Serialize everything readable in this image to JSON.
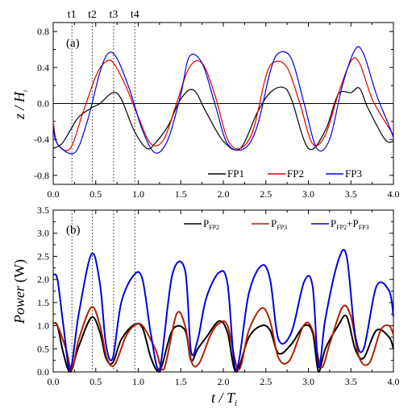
{
  "chart_data": [
    {
      "type": "line",
      "panel_label": "(a)",
      "xlabel": "",
      "ylabel": {
        "base": "z / H",
        "sub": "i"
      },
      "xlim": [
        0.0,
        4.0
      ],
      "ylim": [
        -0.9,
        0.9
      ],
      "xticks": [
        "0.0",
        "0.5",
        "1.0",
        "1.5",
        "2.0",
        "2.5",
        "3.0",
        "3.5",
        "4.0"
      ],
      "yticks": [
        "-0.8",
        "-0.4",
        "0.0",
        "0.4",
        "0.8"
      ],
      "reference_line_y": 0.0,
      "legend_position": "bottom-right",
      "markers": [
        {
          "label": "t1",
          "x": 0.22
        },
        {
          "label": "t2",
          "x": 0.46
        },
        {
          "label": "t3",
          "x": 0.71
        },
        {
          "label": "t4",
          "x": 0.96
        }
      ],
      "series": [
        {
          "name": "FP1",
          "color": "#000000",
          "x": [
            0.0,
            0.1,
            0.2,
            0.3,
            0.45,
            0.55,
            0.7,
            0.8,
            0.95,
            1.1,
            1.2,
            1.35,
            1.5,
            1.65,
            1.8,
            2.0,
            2.2,
            2.4,
            2.55,
            2.7,
            2.8,
            3.0,
            3.2,
            3.35,
            3.5,
            3.6,
            3.7,
            3.9,
            4.0
          ],
          "y": [
            -0.5,
            -0.45,
            -0.3,
            -0.15,
            -0.05,
            0.0,
            0.12,
            0.05,
            -0.3,
            -0.5,
            -0.44,
            -0.25,
            0.05,
            0.15,
            -0.1,
            -0.42,
            -0.5,
            -0.1,
            0.12,
            0.18,
            0.05,
            -0.5,
            -0.3,
            0.1,
            0.12,
            0.17,
            -0.05,
            -0.4,
            -0.42
          ]
        },
        {
          "name": "FP2",
          "color": "#e00000",
          "x": [
            0.0,
            0.05,
            0.2,
            0.35,
            0.5,
            0.6,
            0.7,
            0.85,
            1.0,
            1.15,
            1.3,
            1.45,
            1.6,
            1.75,
            1.9,
            2.05,
            2.2,
            2.35,
            2.5,
            2.6,
            2.75,
            2.9,
            3.05,
            3.2,
            3.35,
            3.5,
            3.6,
            3.75,
            3.9,
            4.0
          ],
          "y": [
            -0.2,
            -0.45,
            -0.5,
            -0.1,
            0.3,
            0.45,
            0.46,
            0.2,
            -0.15,
            -0.45,
            -0.4,
            0.0,
            0.4,
            0.45,
            0.1,
            -0.4,
            -0.5,
            -0.3,
            0.3,
            0.46,
            0.4,
            0.0,
            -0.45,
            -0.35,
            0.1,
            0.47,
            0.45,
            0.05,
            -0.2,
            -0.35
          ]
        },
        {
          "name": "FP3",
          "color": "#0000dd",
          "x": [
            0.0,
            0.05,
            0.25,
            0.4,
            0.55,
            0.65,
            0.75,
            0.9,
            1.05,
            1.2,
            1.35,
            1.5,
            1.6,
            1.75,
            1.9,
            2.05,
            2.25,
            2.4,
            2.55,
            2.65,
            2.8,
            2.95,
            3.1,
            3.25,
            3.4,
            3.55,
            3.65,
            3.8,
            3.95,
            4.0
          ],
          "y": [
            -0.25,
            -0.45,
            -0.55,
            -0.2,
            0.35,
            0.56,
            0.5,
            0.15,
            -0.3,
            -0.55,
            -0.4,
            0.1,
            0.52,
            0.45,
            0.0,
            -0.45,
            -0.5,
            -0.25,
            0.35,
            0.56,
            0.5,
            0.0,
            -0.5,
            -0.4,
            0.2,
            0.6,
            0.55,
            0.1,
            -0.25,
            -0.38
          ]
        }
      ]
    },
    {
      "type": "line",
      "panel_label": "(b)",
      "xlabel": {
        "base": "t / T",
        "sub": "i"
      },
      "ylabel": {
        "base": "Power",
        "unit": "(W)"
      },
      "xlim": [
        0.0,
        4.0
      ],
      "ylim": [
        0.0,
        3.5
      ],
      "xticks": [
        "0.0",
        "0.5",
        "1.0",
        "1.5",
        "2.0",
        "2.5",
        "3.0",
        "3.5",
        "4.0"
      ],
      "yticks": [
        "0.0",
        "0.5",
        "1.0",
        "1.5",
        "2.0",
        "2.5",
        "3.0",
        "3.5"
      ],
      "legend_position": "top-right",
      "series": [
        {
          "name": "P",
          "sub": "FP2",
          "color": "#000000",
          "x": [
            0.0,
            0.05,
            0.12,
            0.2,
            0.3,
            0.45,
            0.55,
            0.62,
            0.7,
            0.8,
            0.95,
            1.05,
            1.15,
            1.25,
            1.4,
            1.55,
            1.62,
            1.7,
            1.8,
            1.95,
            2.05,
            2.15,
            2.3,
            2.45,
            2.55,
            2.65,
            2.8,
            2.95,
            3.05,
            3.12,
            3.2,
            3.35,
            3.45,
            3.55,
            3.65,
            3.8,
            3.95,
            4.0
          ],
          "y": [
            1.05,
            1.0,
            0.4,
            0.0,
            0.55,
            1.18,
            0.85,
            0.3,
            0.2,
            0.7,
            1.02,
            0.95,
            0.3,
            0.0,
            0.9,
            0.9,
            0.25,
            0.5,
            0.75,
            1.1,
            0.85,
            0.0,
            0.75,
            1.0,
            0.9,
            0.4,
            0.6,
            1.0,
            0.85,
            0.0,
            0.5,
            1.0,
            1.2,
            0.5,
            0.3,
            0.9,
            0.75,
            0.5
          ]
        },
        {
          "name": "P",
          "sub": "FP3",
          "color": "#b02000",
          "x": [
            0.0,
            0.05,
            0.15,
            0.22,
            0.3,
            0.45,
            0.55,
            0.63,
            0.72,
            0.85,
            0.95,
            1.05,
            1.2,
            1.3,
            1.45,
            1.55,
            1.63,
            1.72,
            1.85,
            1.95,
            2.05,
            2.18,
            2.3,
            2.45,
            2.55,
            2.65,
            2.78,
            2.95,
            3.05,
            3.15,
            3.25,
            3.4,
            3.5,
            3.6,
            3.72,
            3.85,
            3.95,
            4.0
          ],
          "y": [
            1.05,
            1.0,
            0.5,
            0.05,
            0.7,
            1.4,
            1.0,
            0.3,
            0.15,
            0.75,
            1.0,
            1.0,
            0.5,
            0.05,
            1.25,
            1.0,
            0.2,
            0.2,
            0.8,
            1.05,
            1.0,
            0.05,
            0.9,
            1.38,
            1.1,
            0.3,
            0.25,
            1.02,
            0.9,
            0.1,
            0.6,
            1.4,
            1.2,
            0.3,
            0.2,
            0.9,
            1.0,
            0.8
          ]
        },
        {
          "name": "P",
          "sub": "FP2",
          "name2": "+P",
          "sub2": "FP3",
          "color": "#0000dd",
          "x": [
            0.0,
            0.05,
            0.12,
            0.2,
            0.3,
            0.45,
            0.55,
            0.62,
            0.7,
            0.8,
            0.95,
            1.05,
            1.15,
            1.25,
            1.4,
            1.55,
            1.62,
            1.7,
            1.8,
            1.95,
            2.05,
            2.15,
            2.3,
            2.45,
            2.55,
            2.65,
            2.8,
            2.95,
            3.05,
            3.12,
            3.2,
            3.35,
            3.45,
            3.55,
            3.65,
            3.8,
            3.95,
            4.0
          ],
          "y": [
            2.1,
            2.0,
            1.0,
            0.05,
            1.25,
            2.55,
            1.9,
            0.6,
            0.3,
            1.5,
            2.1,
            2.0,
            0.8,
            0.05,
            2.1,
            2.2,
            0.45,
            0.7,
            1.6,
            2.15,
            1.9,
            0.05,
            1.7,
            2.3,
            2.0,
            0.7,
            0.85,
            1.95,
            1.85,
            0.1,
            1.15,
            2.4,
            2.5,
            0.8,
            0.5,
            1.85,
            1.75,
            1.2
          ]
        }
      ]
    }
  ]
}
